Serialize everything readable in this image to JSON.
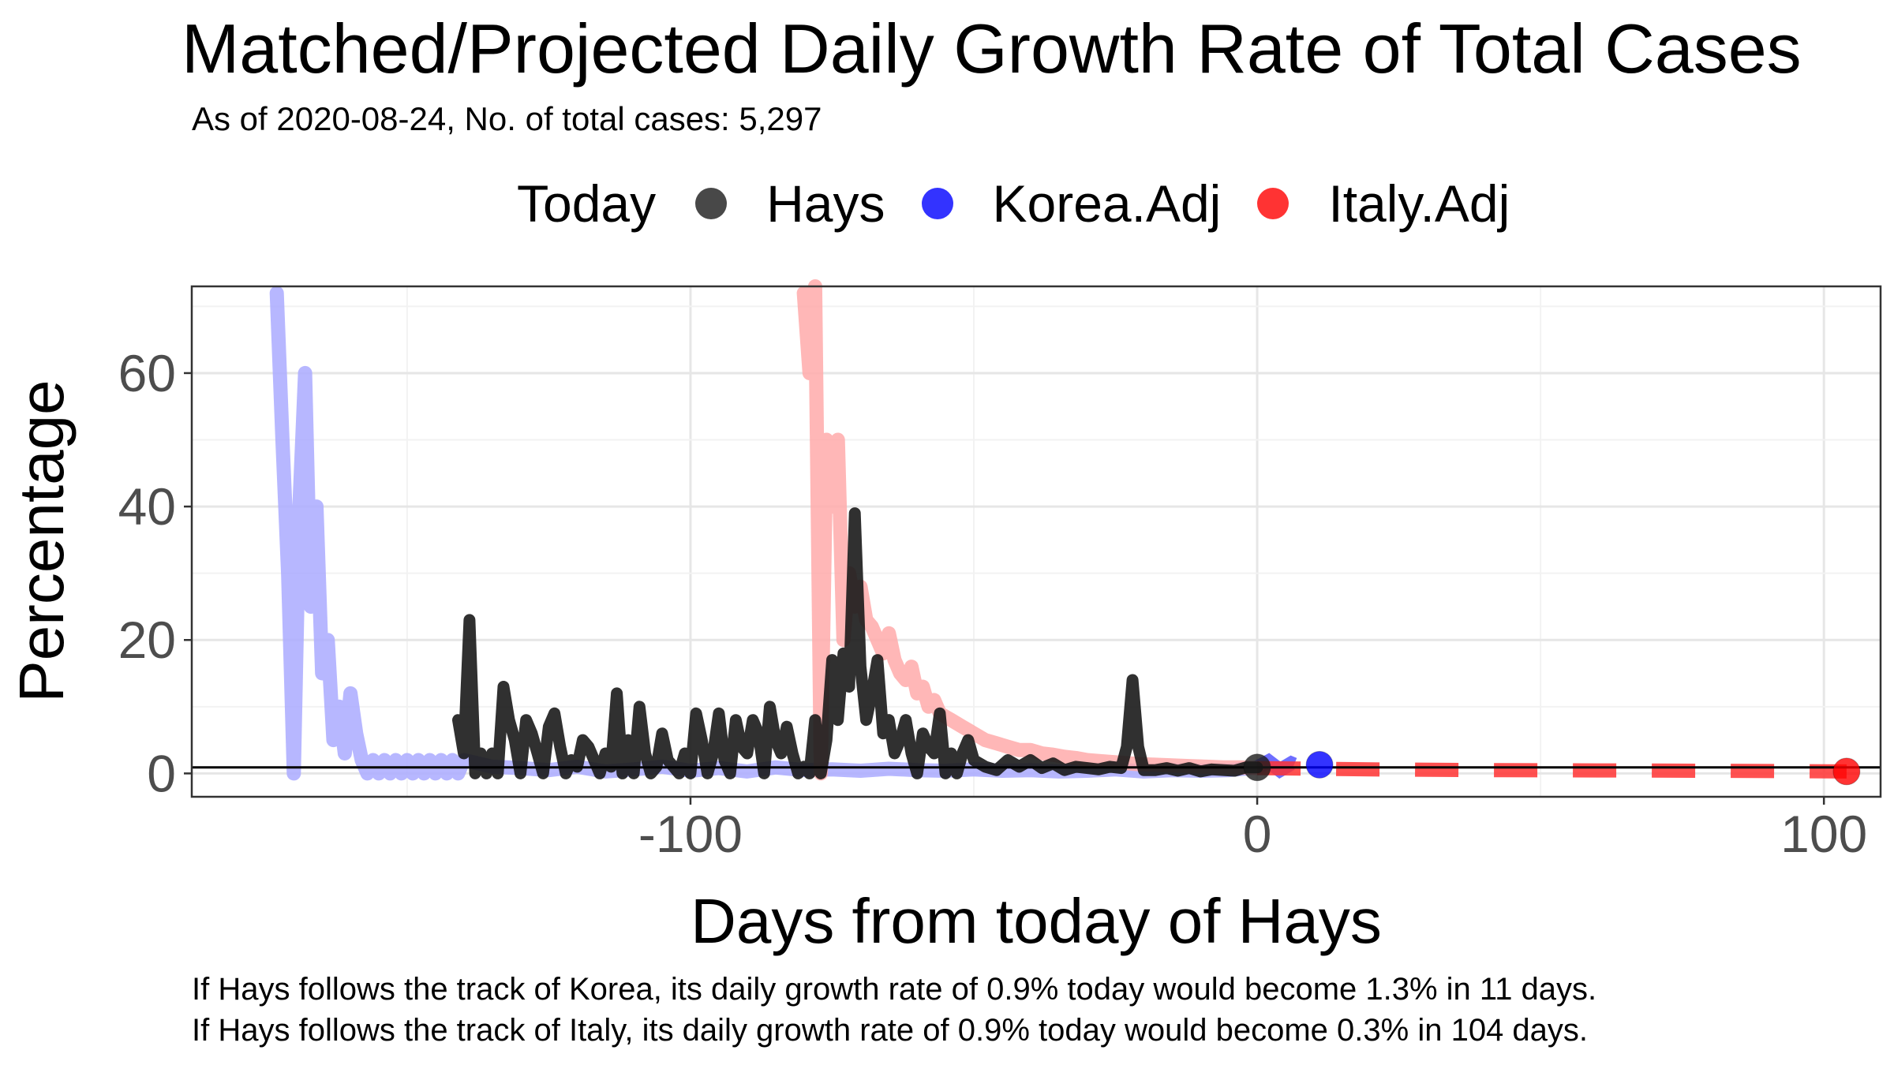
{
  "chart_data": {
    "type": "line",
    "title": "Matched/Projected Daily Growth Rate of Total Cases",
    "subtitle": "As of 2020-08-24, No. of total cases: 5,297",
    "xlabel": "Days from today of Hays",
    "ylabel": "Percentage",
    "xlim": [
      -188,
      110
    ],
    "ylim": [
      -3.5,
      73
    ],
    "x_ticks": [
      -100,
      0,
      100
    ],
    "y_ticks": [
      0,
      20,
      40,
      60
    ],
    "x_tick_labels": [
      "-100",
      "0",
      "100"
    ],
    "y_tick_labels": [
      "0",
      "20",
      "40",
      "60"
    ],
    "grid": true,
    "legend": {
      "title": "Today",
      "placement": "top",
      "entries": [
        {
          "label": "Hays",
          "color": "#1a1a1a"
        },
        {
          "label": "Korea.Adj",
          "color": "#0000ff"
        },
        {
          "label": "Italy.Adj",
          "color": "#ff0000"
        }
      ]
    },
    "reference_line_y": 0.9,
    "series": [
      {
        "name": "Korea.Adj",
        "color": "#aaaaff",
        "projected_color": "#5555ff",
        "x": [
          -173,
          -172,
          -171,
          -170,
          -169,
          -168,
          -167,
          -166,
          -165,
          -164,
          -163,
          -162,
          -161,
          -160,
          -159,
          -158,
          -157,
          -156,
          -155,
          -154,
          -153,
          -152,
          -151,
          -150,
          -149,
          -148,
          -147,
          -146,
          -145,
          -144,
          -143,
          -142,
          -141,
          -140,
          -135,
          -130,
          -125,
          -120,
          -115,
          -110,
          -105,
          -100,
          -95,
          -90,
          -85,
          -80,
          -75,
          -70,
          -65,
          -60,
          -55,
          -50,
          -45,
          -40,
          -35,
          -30,
          -25,
          -20,
          -15,
          -10,
          -5,
          0,
          2,
          4,
          6,
          8,
          10,
          11
        ],
        "y": [
          72,
          50,
          30,
          0,
          40,
          60,
          25,
          40,
          15,
          20,
          5,
          10,
          3,
          12,
          6,
          2,
          0,
          2,
          0,
          2,
          0,
          2,
          0,
          2,
          0,
          2,
          0,
          2,
          0,
          2,
          0,
          2,
          0,
          2,
          1,
          0.8,
          0.5,
          1,
          0.3,
          0.6,
          1,
          0.4,
          0.8,
          0.3,
          0.9,
          0.5,
          0.6,
          0.4,
          0.7,
          0.5,
          0.4,
          0.6,
          0.4,
          0.5,
          0.3,
          0.4,
          0.6,
          0.3,
          0.5,
          0.4,
          0.5,
          0.9,
          1.8,
          0.5,
          1.5,
          0.8,
          1.4,
          1.3
        ]
      },
      {
        "name": "Italy.Adj",
        "color": "#ffaaaa",
        "projected_color": "#ff3333",
        "x": [
          -80,
          -79,
          -78,
          -77,
          -76,
          -75,
          -74,
          -73,
          -72,
          -71,
          -70,
          -69,
          -68,
          -67,
          -66,
          -65,
          -64,
          -63,
          -62,
          -61,
          -60,
          -59,
          -58,
          -57,
          -56,
          -55,
          -54,
          -53,
          -52,
          -51,
          -50,
          -48,
          -46,
          -44,
          -42,
          -40,
          -38,
          -36,
          -34,
          -32,
          -30,
          -27,
          -24,
          -21,
          -18,
          -15,
          -12,
          -9,
          -6,
          -3,
          0,
          20,
          40,
          60,
          80,
          104
        ],
        "y": [
          72,
          60,
          80,
          0,
          50,
          40,
          50,
          20,
          30,
          25,
          28,
          23,
          22,
          20,
          18,
          21,
          17,
          15,
          14,
          16,
          12,
          13,
          10,
          11,
          9,
          8.5,
          8,
          7.5,
          7,
          6.5,
          6,
          5,
          4.5,
          4,
          3.5,
          3.5,
          3,
          2.8,
          2.5,
          2.3,
          2,
          1.8,
          1.6,
          1.4,
          1.3,
          1.2,
          1.1,
          1,
          0.9,
          0.9,
          0.8,
          0.6,
          0.5,
          0.45,
          0.4,
          0.3
        ]
      },
      {
        "name": "Hays",
        "color": "#1a1a1a",
        "x": [
          -141,
          -140,
          -139,
          -138,
          -137,
          -136,
          -135,
          -134,
          -133,
          -132,
          -131,
          -130,
          -129,
          -128,
          -127,
          -126,
          -125,
          -124,
          -123,
          -122,
          -121,
          -120,
          -119,
          -118,
          -117,
          -116,
          -115,
          -114,
          -113,
          -112,
          -111,
          -110,
          -109,
          -108,
          -107,
          -106,
          -105,
          -104,
          -103,
          -102,
          -101,
          -100,
          -99,
          -98,
          -97,
          -96,
          -95,
          -94,
          -93,
          -92,
          -91,
          -90,
          -89,
          -88,
          -87,
          -86,
          -85,
          -84,
          -83,
          -82,
          -81,
          -80,
          -79,
          -78,
          -77,
          -76,
          -75,
          -74,
          -73,
          -72,
          -71,
          -70,
          -69,
          -68,
          -67,
          -66,
          -65,
          -64,
          -63,
          -62,
          -61,
          -60,
          -59,
          -58,
          -57,
          -56,
          -55,
          -54,
          -53,
          -52,
          -51,
          -50,
          -48,
          -46,
          -44,
          -42,
          -40,
          -38,
          -36,
          -34,
          -32,
          -30,
          -28,
          -26,
          -24,
          -23,
          -22,
          -21,
          -20,
          -18,
          -16,
          -14,
          -12,
          -10,
          -8,
          -6,
          -4,
          -2,
          0
        ],
        "y": [
          8,
          3,
          23,
          0,
          3,
          0,
          3,
          0,
          13,
          8,
          5,
          0,
          8,
          6,
          3,
          0,
          7,
          9,
          4,
          0,
          2,
          1,
          5,
          4,
          2,
          0,
          3,
          1,
          12,
          0,
          5,
          0,
          10,
          3,
          0,
          1,
          6,
          2,
          1,
          0,
          3,
          0,
          9,
          5,
          0,
          3,
          9,
          2,
          0,
          8,
          4,
          3,
          8,
          6,
          0,
          10,
          5,
          3,
          7,
          3,
          0,
          1,
          0,
          8,
          0,
          5,
          17,
          8,
          18,
          13,
          39,
          16,
          8,
          12,
          17,
          6,
          8,
          3,
          5,
          8,
          3,
          0,
          6,
          4,
          3,
          9,
          0,
          3,
          0,
          3,
          5,
          2,
          1,
          0.5,
          2,
          1,
          2,
          0.8,
          1.5,
          0.5,
          1,
          0.8,
          0.6,
          1,
          0.8,
          4,
          14,
          4,
          0.5,
          0.5,
          0.8,
          0.4,
          0.8,
          0.3,
          0.6,
          0.5,
          0.4,
          0.9,
          0.9
        ]
      }
    ],
    "today_points": [
      {
        "series": "Hays",
        "x": 0,
        "y": 0.9,
        "color": "#1a1a1a"
      },
      {
        "series": "Korea.Adj",
        "x": 11,
        "y": 1.3,
        "color": "#0000ff"
      },
      {
        "series": "Italy.Adj",
        "x": 104,
        "y": 0.3,
        "color": "#ff0000"
      }
    ],
    "captions": [
      "If Hays follows the track of Korea, its daily growth rate of 0.9% today would become 1.3% in 11 days.",
      "If Hays follows the track of Italy, its daily growth rate of 0.9% today would become 0.3% in 104 days."
    ]
  }
}
